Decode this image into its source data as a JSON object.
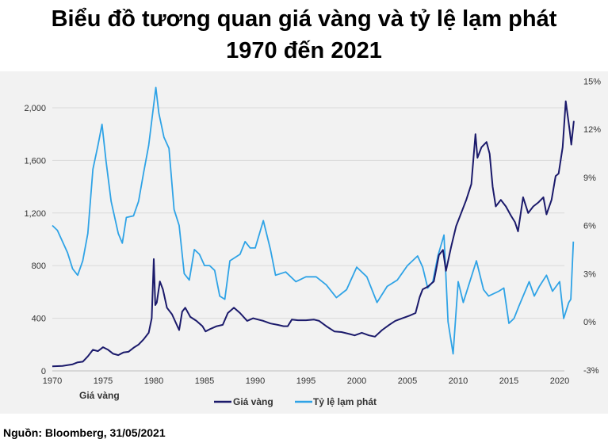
{
  "title_line1": "Biểu đồ tương quan giá vàng và tỷ lệ lạm phát",
  "title_line2": "1970 đến 2021",
  "source": "Nguồn: Bloomberg, 31/05/2021",
  "chart_data": {
    "type": "line",
    "title": "Biểu đồ tương quan giá vàng và tỷ lệ lạm phát 1970 đến 2021",
    "xlabel": "",
    "ylabel": "Giá vàng",
    "y2label": "",
    "xlim": [
      1970,
      2021.5
    ],
    "ylim": [
      0,
      2200
    ],
    "y2lim": [
      -3,
      15
    ],
    "x_ticks": [
      "1970",
      "1975",
      "1980",
      "1985",
      "1990",
      "1995",
      "2000",
      "2005",
      "2010",
      "2015",
      "2020"
    ],
    "y_ticks": [
      "0",
      "400",
      "800",
      "1,200",
      "1,600",
      "2,000"
    ],
    "y2_ticks": [
      "-3%",
      "0%",
      "3%",
      "6%",
      "9%",
      "12%",
      "15%"
    ],
    "grid": true,
    "legend_position": "bottom",
    "colors": {
      "gold": "#1b1a6b",
      "inflation": "#2fa3e6"
    },
    "series": [
      {
        "name": "Giá vàng",
        "axis": "left",
        "x": [
          1970,
          1971,
          1972,
          1972.5,
          1973,
          1973.5,
          1974,
          1974.5,
          1975,
          1975.5,
          1976,
          1976.5,
          1977,
          1977.5,
          1978,
          1978.5,
          1979,
          1979.5,
          1979.8,
          1980.0,
          1980.15,
          1980.3,
          1980.6,
          1980.9,
          1981.3,
          1981.8,
          1982.5,
          1982.8,
          1983.1,
          1983.6,
          1984.2,
          1984.8,
          1985.1,
          1985.6,
          1986.2,
          1986.8,
          1987.3,
          1987.9,
          1988.5,
          1989.2,
          1989.8,
          1990.3,
          1990.8,
          1991.5,
          1992.2,
          1992.8,
          1993.2,
          1993.6,
          1994.2,
          1995,
          1995.8,
          1996.3,
          1997,
          1997.8,
          1998.5,
          1999.3,
          1999.8,
          2000.5,
          2001.2,
          2001.8,
          2002.5,
          2003.2,
          2003.8,
          2004.5,
          2005.2,
          2005.8,
          2006.2,
          2006.5,
          2007,
          2007.6,
          2008.1,
          2008.5,
          2008.8,
          2009.3,
          2009.8,
          2010.3,
          2010.8,
          2011.3,
          2011.7,
          2011.9,
          2012.3,
          2012.8,
          2013.1,
          2013.4,
          2013.7,
          2014.2,
          2014.7,
          2015.2,
          2015.6,
          2015.9,
          2016.4,
          2016.9,
          2017.4,
          2017.9,
          2018.4,
          2018.7,
          2019.2,
          2019.6,
          2019.9,
          2020.3,
          2020.6,
          2020.9,
          2021.0,
          2021.15,
          2021.4
        ],
        "values": [
          35,
          38,
          50,
          65,
          70,
          110,
          160,
          150,
          180,
          160,
          130,
          120,
          140,
          145,
          175,
          200,
          240,
          290,
          400,
          850,
          500,
          520,
          680,
          620,
          480,
          430,
          310,
          450,
          480,
          410,
          380,
          340,
          300,
          320,
          340,
          350,
          440,
          480,
          440,
          380,
          400,
          390,
          380,
          360,
          350,
          340,
          340,
          390,
          385,
          385,
          390,
          380,
          340,
          300,
          295,
          280,
          270,
          290,
          270,
          260,
          310,
          350,
          380,
          400,
          420,
          440,
          560,
          620,
          640,
          680,
          880,
          920,
          760,
          940,
          1100,
          1200,
          1300,
          1420,
          1800,
          1620,
          1700,
          1740,
          1650,
          1400,
          1250,
          1300,
          1250,
          1180,
          1130,
          1060,
          1320,
          1200,
          1250,
          1280,
          1320,
          1190,
          1300,
          1480,
          1500,
          1700,
          2050,
          1880,
          1820,
          1720,
          1900
        ]
      },
      {
        "name": "Tỷ lệ lạm phát",
        "axis": "right",
        "x": [
          1970,
          1970.5,
          1971,
          1971.5,
          1972,
          1972.5,
          1973,
          1973.5,
          1974,
          1974.5,
          1974.9,
          1975.3,
          1975.8,
          1976.5,
          1976.9,
          1977.3,
          1978,
          1978.5,
          1979,
          1979.5,
          1980.2,
          1980.5,
          1981,
          1981.5,
          1982,
          1982.5,
          1983,
          1983.5,
          1984,
          1984.5,
          1985,
          1985.5,
          1986,
          1986.5,
          1987,
          1987.5,
          1988,
          1988.5,
          1989,
          1989.5,
          1990,
          1990.8,
          1991.5,
          1992,
          1993,
          1994,
          1995,
          1996,
          1997,
          1998,
          1999,
          2000,
          2001,
          2002,
          2003,
          2004,
          2005,
          2006,
          2006.5,
          2007,
          2007.5,
          2008,
          2008.6,
          2009,
          2009.5,
          2010,
          2010.5,
          2011,
          2011.8,
          2012.5,
          2013,
          2014,
          2014.5,
          2015,
          2015.5,
          2016,
          2017,
          2017.5,
          2018,
          2018.7,
          2019.3,
          2020,
          2020.4,
          2020.9,
          2021.1,
          2021.35
        ],
        "values": [
          6.0,
          5.7,
          5.0,
          4.3,
          3.3,
          2.9,
          3.8,
          5.5,
          9.5,
          11.0,
          12.3,
          10.0,
          7.5,
          5.5,
          4.9,
          6.5,
          6.6,
          7.5,
          9.3,
          11.0,
          14.6,
          13.0,
          11.5,
          10.8,
          7.0,
          6.0,
          3.0,
          2.6,
          4.5,
          4.2,
          3.5,
          3.5,
          3.2,
          1.6,
          1.4,
          3.8,
          4.0,
          4.2,
          5.0,
          4.6,
          4.6,
          6.3,
          4.5,
          2.9,
          3.1,
          2.5,
          2.8,
          2.8,
          2.3,
          1.5,
          2.0,
          3.4,
          2.8,
          1.2,
          2.2,
          2.6,
          3.5,
          4.1,
          3.4,
          2.1,
          2.5,
          4.1,
          5.4,
          0.0,
          -2.0,
          2.5,
          1.2,
          2.2,
          3.8,
          2.0,
          1.6,
          1.9,
          2.1,
          -0.1,
          0.2,
          1.0,
          2.5,
          1.6,
          2.2,
          2.9,
          1.9,
          2.5,
          0.2,
          1.2,
          1.4,
          5.0
        ]
      }
    ]
  }
}
